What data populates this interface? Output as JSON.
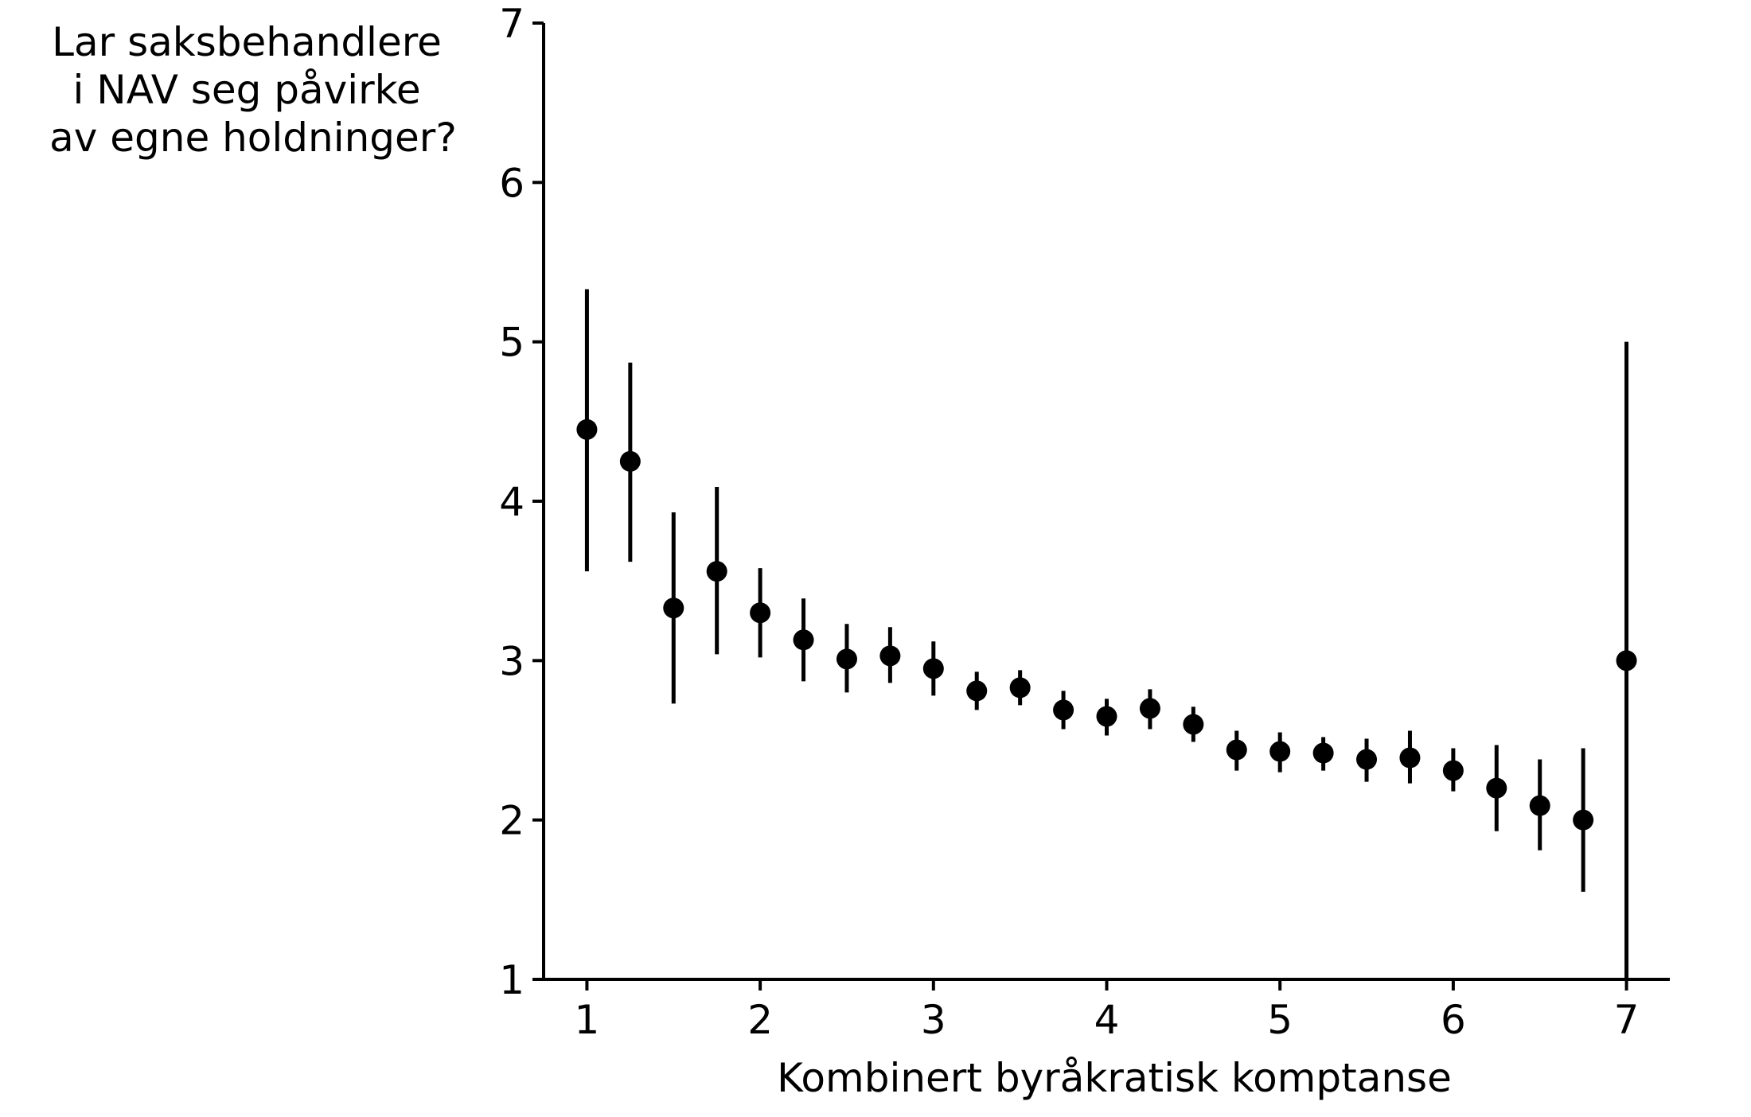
{
  "chart_data": {
    "type": "scatter",
    "title": "",
    "ylabel_lines": [
      "Lar saksbehandlere",
      "i NAV seg påvirke",
      "av egne holdninger?"
    ],
    "xlabel": "Kombinert byråkratisk komptanse",
    "xlim": [
      0.75,
      7.25
    ],
    "ylim": [
      1,
      7
    ],
    "xticks": [
      1,
      2,
      3,
      4,
      5,
      6,
      7
    ],
    "yticks": [
      1,
      2,
      3,
      4,
      5,
      6,
      7
    ],
    "grid": false,
    "legend": "none",
    "marker_color": "#000000",
    "points": [
      {
        "x": 1.0,
        "y": 4.45,
        "lo": 3.56,
        "hi": 5.33
      },
      {
        "x": 1.25,
        "y": 4.25,
        "lo": 3.62,
        "hi": 4.87
      },
      {
        "x": 1.5,
        "y": 3.33,
        "lo": 2.73,
        "hi": 3.93
      },
      {
        "x": 1.75,
        "y": 3.56,
        "lo": 3.04,
        "hi": 4.09
      },
      {
        "x": 2.0,
        "y": 3.3,
        "lo": 3.02,
        "hi": 3.58
      },
      {
        "x": 2.25,
        "y": 3.13,
        "lo": 2.87,
        "hi": 3.39
      },
      {
        "x": 2.5,
        "y": 3.01,
        "lo": 2.8,
        "hi": 3.23
      },
      {
        "x": 2.75,
        "y": 3.03,
        "lo": 2.86,
        "hi": 3.21
      },
      {
        "x": 3.0,
        "y": 2.95,
        "lo": 2.78,
        "hi": 3.12
      },
      {
        "x": 3.25,
        "y": 2.81,
        "lo": 2.69,
        "hi": 2.93
      },
      {
        "x": 3.5,
        "y": 2.83,
        "lo": 2.72,
        "hi": 2.94
      },
      {
        "x": 3.75,
        "y": 2.69,
        "lo": 2.57,
        "hi": 2.81
      },
      {
        "x": 4.0,
        "y": 2.65,
        "lo": 2.53,
        "hi": 2.76
      },
      {
        "x": 4.25,
        "y": 2.7,
        "lo": 2.57,
        "hi": 2.82
      },
      {
        "x": 4.5,
        "y": 2.6,
        "lo": 2.49,
        "hi": 2.71
      },
      {
        "x": 4.75,
        "y": 2.44,
        "lo": 2.31,
        "hi": 2.56
      },
      {
        "x": 5.0,
        "y": 2.43,
        "lo": 2.3,
        "hi": 2.55
      },
      {
        "x": 5.25,
        "y": 2.42,
        "lo": 2.31,
        "hi": 2.52
      },
      {
        "x": 5.5,
        "y": 2.38,
        "lo": 2.24,
        "hi": 2.51
      },
      {
        "x": 5.75,
        "y": 2.39,
        "lo": 2.23,
        "hi": 2.56
      },
      {
        "x": 6.0,
        "y": 2.31,
        "lo": 2.18,
        "hi": 2.45
      },
      {
        "x": 6.25,
        "y": 2.2,
        "lo": 1.93,
        "hi": 2.47
      },
      {
        "x": 6.5,
        "y": 2.09,
        "lo": 1.81,
        "hi": 2.38
      },
      {
        "x": 6.75,
        "y": 2.0,
        "lo": 1.55,
        "hi": 2.45
      },
      {
        "x": 7.0,
        "y": 3.0,
        "lo": 1.0,
        "hi": 5.0
      }
    ]
  }
}
